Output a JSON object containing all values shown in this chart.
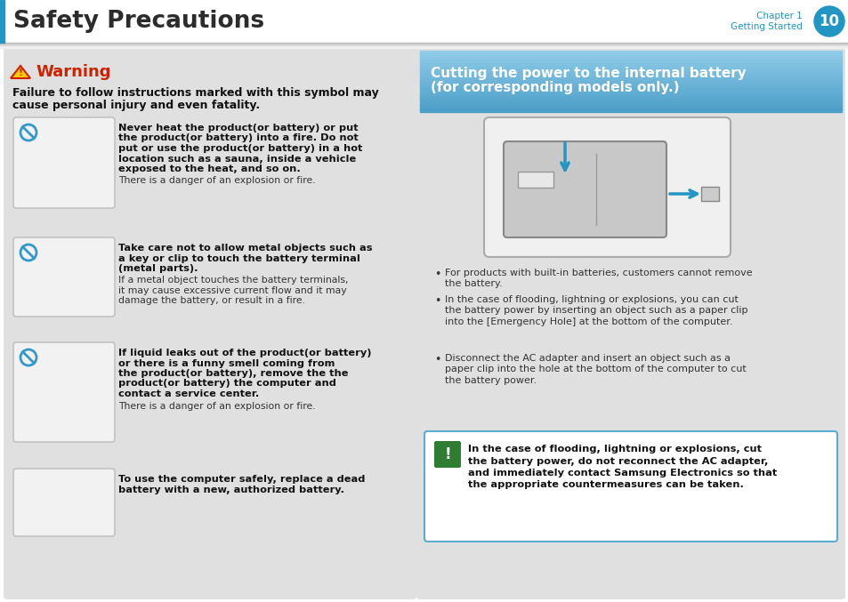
{
  "title": "Safety Precautions",
  "chapter_label": "Chapter 1",
  "chapter_sub": "Getting Started",
  "chapter_num": "10",
  "chapter_circle_color": "#2196c4",
  "header_text_color": "#2c2c2c",
  "left_blue_bar": "#2196c4",
  "header_shadow": "#cccccc",
  "warning_title": "Warning",
  "warning_color": "#cc2200",
  "warning_triangle_fill": "#ffcc00",
  "warning_triangle_edge": "#cc2200",
  "warning_intro_line1": "Failure to follow instructions marked with this symbol may",
  "warning_intro_line2": "cause personal injury and even fatality.",
  "left_panel_bg": "#e0e0e0",
  "item_box_bg": "#f2f2f2",
  "item_box_edge": "#bbbbbb",
  "items": [
    {
      "bold_lines": [
        "Never heat the product(or battery) or put",
        "the product(or battery) into a fire. Do not",
        "put or use the product(or battery) in a hot",
        "location such as a sauna, inside a vehicle",
        "exposed to the heat, and so on."
      ],
      "normal_lines": [
        "There is a danger of an explosion or fire."
      ],
      "has_no_symbol": true
    },
    {
      "bold_lines": [
        "Take care not to allow metal objects such as",
        "a key or clip to touch the battery terminal",
        "(metal parts)."
      ],
      "normal_lines": [
        "If a metal object touches the battery terminals,",
        "it may cause excessive current flow and it may",
        "damage the battery, or result in a fire."
      ],
      "has_no_symbol": true
    },
    {
      "bold_lines": [
        "If liquid leaks out of the product(or battery)",
        "or there is a funny smell coming from",
        "the product(or battery), remove the the",
        "product(or battery) the computer and",
        "contact a service center."
      ],
      "normal_lines": [
        "There is a danger of an explosion or fire."
      ],
      "has_no_symbol": true
    },
    {
      "bold_lines": [
        "To use the computer safely, replace a dead",
        "battery with a new, authorized battery."
      ],
      "normal_lines": [],
      "has_no_symbol": false
    }
  ],
  "right_panel_bg": "#e0e0e0",
  "right_header_bg_top": "#90cce8",
  "right_header_bg_bot": "#5aadd0",
  "right_header_text_line1": "Cutting the power to the internal battery",
  "right_header_text_line2": "(for corresponding models only.)",
  "right_header_text_color": "#ffffff",
  "bullet_color": "#333333",
  "bullets": [
    [
      "For products with built-in batteries, customers cannot remove",
      "the battery."
    ],
    [
      "In the case of flooding, lightning or explosions, you can cut",
      "the battery power by inserting an object such as a paper clip",
      "into the [Emergency Hole] at the bottom of the computer."
    ],
    [
      "Disconnect the AC adapter and insert an object such as a",
      "paper clip into the hole at the bottom of the computer to cut",
      "the battery power."
    ]
  ],
  "caution_bg": "#ffffff",
  "caution_border": "#5aadd0",
  "caution_icon_bg": "#2e7d32",
  "caution_bold_lines": [
    "In the case of flooding, lightning or explosions, cut",
    "the battery power, do not reconnect the AC adapter,",
    "and immediately contact Samsung Electronics so that",
    "the appropriate countermeasures can be taken."
  ]
}
